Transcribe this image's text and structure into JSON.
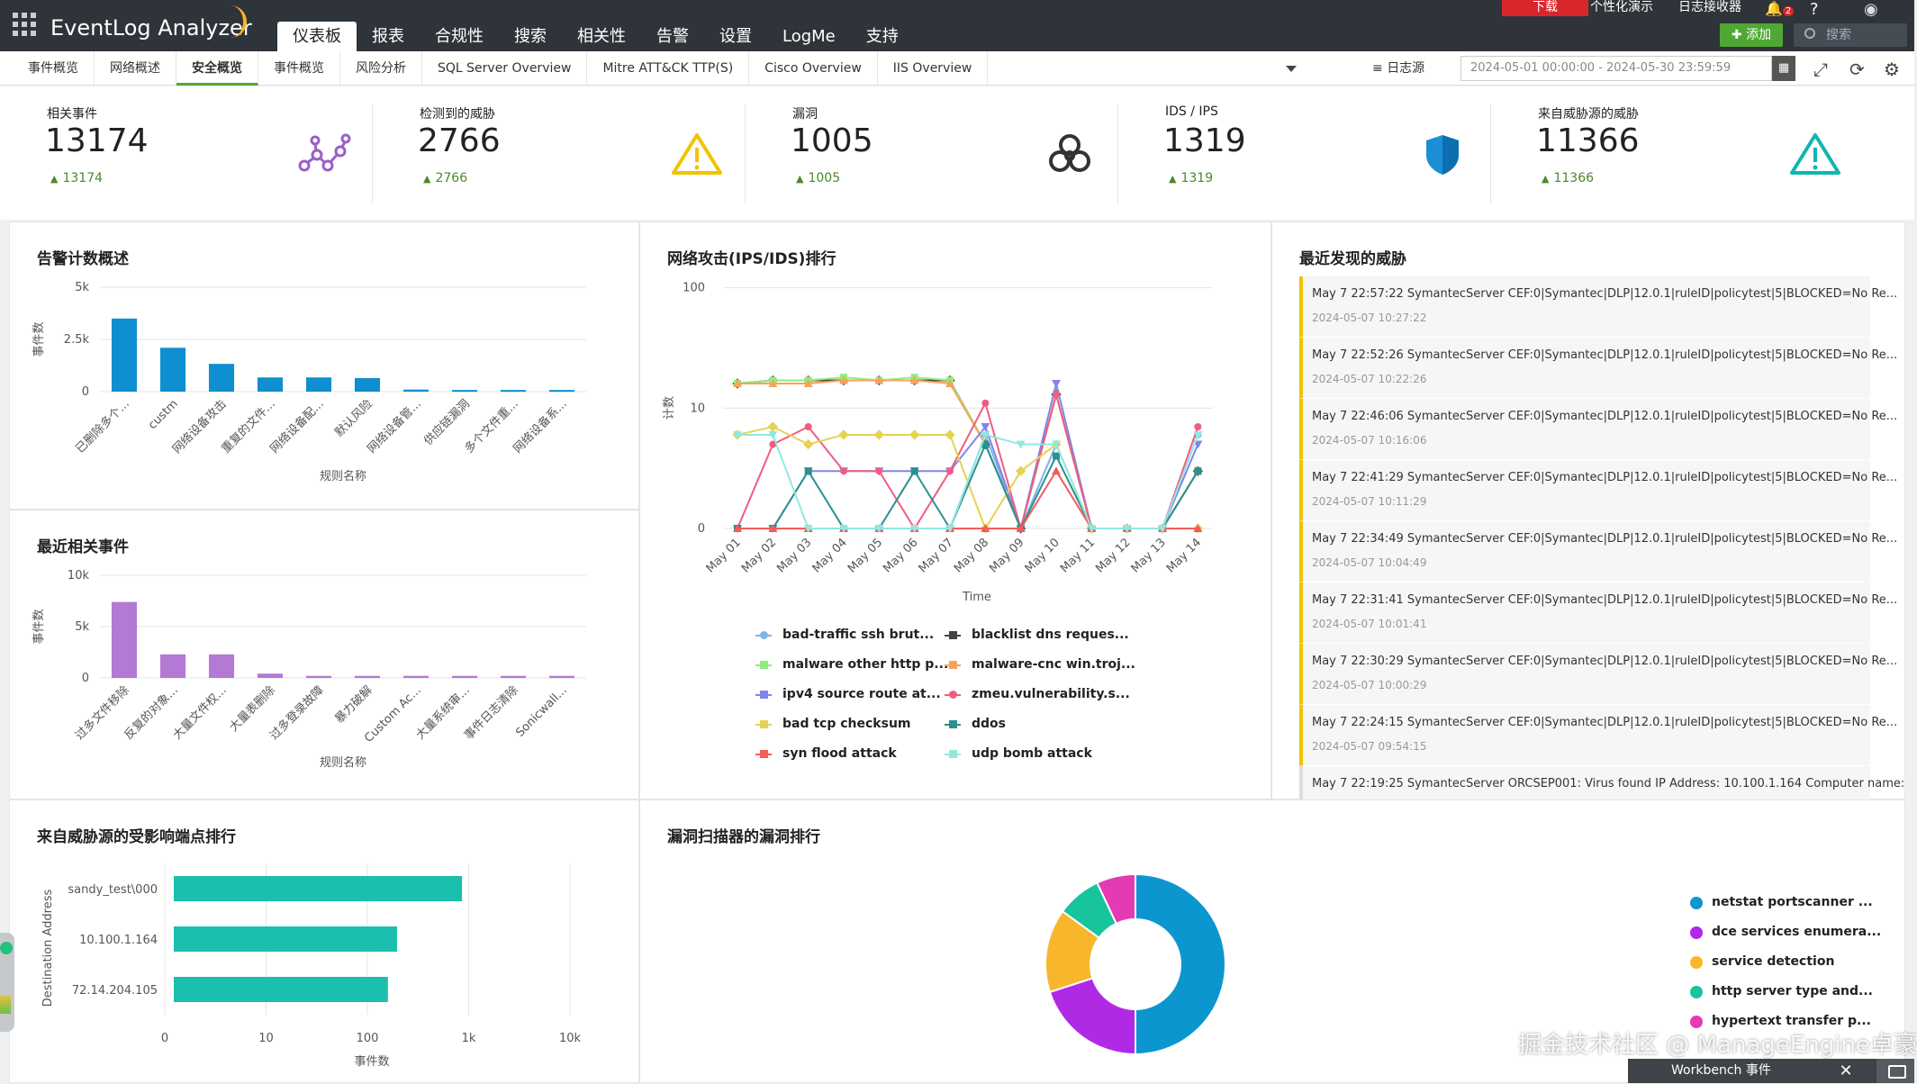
{
  "app": {
    "name": "EventLog Analyzer",
    "main_nav": [
      "仪表板",
      "报表",
      "合规性",
      "搜索",
      "相关性",
      "告警",
      "设置",
      "LogMe",
      "支持"
    ],
    "top_links": {
      "download": "下载",
      "personalize": "个性化演示",
      "log_receiver": "日志接收器",
      "help": "?",
      "bell_count": "2"
    },
    "add_label": "添加",
    "search_placeholder": "搜索"
  },
  "subnav": {
    "tabs": [
      "事件概览",
      "网络概述",
      "安全概览",
      "事件概览",
      "风险分析",
      "SQL Server Overview",
      "Mitre ATT&CK TTP(S)",
      "Cisco Overview",
      "IIS Overview"
    ],
    "active_index": 2,
    "log_source": "日志源",
    "date_range": "2024-05-01 00:00:00 - 2024-05-30 23:59:59"
  },
  "kpis": [
    {
      "label": "相关事件",
      "value": "13174",
      "delta": "13174",
      "icon": "correlation-icon",
      "color": "#9b5fc7"
    },
    {
      "label": "检测到的威胁",
      "value": "2766",
      "delta": "2766",
      "icon": "warning-icon",
      "color": "#f2c300"
    },
    {
      "label": "漏洞",
      "value": "1005",
      "delta": "1005",
      "icon": "biohazard-icon",
      "color": "#333333"
    },
    {
      "label": "IDS / IPS",
      "value": "1319",
      "delta": "1319",
      "icon": "shield-icon",
      "color": "#1a8fd6"
    },
    {
      "label": "来自威胁源的威胁",
      "value": "11366",
      "delta": "11366",
      "icon": "alert-triangle-icon",
      "color": "#12b5b0"
    }
  ],
  "panels": {
    "alert_count": "告警计数概述",
    "network_attack": "网络攻击(IPS/IDS)排行",
    "recent_threats": "最近发现的威胁",
    "recent_correlation": "最近相关事件",
    "threat_endpoints": "来自威胁源的受影响端点排行",
    "vuln_scanner": "漏洞扫描器的漏洞排行"
  },
  "recent_threats": [
    {
      "text": "May 7 22:57:22 SymantecServer CEF:0|Symantec|DLP|12.0.1|ruleID|policytest|5|BLOCKED=No Re...",
      "time": "2024-05-07 10:27:22"
    },
    {
      "text": "May 7 22:52:26 SymantecServer CEF:0|Symantec|DLP|12.0.1|ruleID|policytest|5|BLOCKED=No Re...",
      "time": "2024-05-07 10:22:26"
    },
    {
      "text": "May 7 22:46:06 SymantecServer CEF:0|Symantec|DLP|12.0.1|ruleID|policytest|5|BLOCKED=No Re...",
      "time": "2024-05-07 10:16:06"
    },
    {
      "text": "May 7 22:41:29 SymantecServer CEF:0|Symantec|DLP|12.0.1|ruleID|policytest|5|BLOCKED=No Re...",
      "time": "2024-05-07 10:11:29"
    },
    {
      "text": "May 7 22:34:49 SymantecServer CEF:0|Symantec|DLP|12.0.1|ruleID|policytest|5|BLOCKED=No Re...",
      "time": "2024-05-07 10:04:49"
    },
    {
      "text": "May 7 22:31:41 SymantecServer CEF:0|Symantec|DLP|12.0.1|ruleID|policytest|5|BLOCKED=No Re...",
      "time": "2024-05-07 10:01:41"
    },
    {
      "text": "May 7 22:30:29 SymantecServer CEF:0|Symantec|DLP|12.0.1|ruleID|policytest|5|BLOCKED=No Re...",
      "time": "2024-05-07 10:00:29"
    },
    {
      "text": "May 7 22:24:15 SymantecServer CEF:0|Symantec|DLP|12.0.1|ruleID|policytest|5|BLOCKED=No Re...",
      "time": "2024-05-07 09:54:15"
    },
    {
      "text": "May 7 22:19:25 SymantecServer ORCSEP001: Virus found IP Address: 10.100.1.164 Computer name:",
      "time": ""
    }
  ],
  "chart_data": [
    {
      "id": "alert-count",
      "type": "bar",
      "xlabel": "规则名称",
      "ylabel": "事件数",
      "yticks": [
        "0",
        "2.5k",
        "5k"
      ],
      "ylim": [
        0,
        5000
      ],
      "categories": [
        "已删除多个...",
        "custm",
        "网络设备攻击",
        "重复的文件...",
        "网络设备配...",
        "默认风险",
        "网络设备管...",
        "供应链漏洞",
        "多个文件重...",
        "网络设备系..."
      ],
      "values": [
        3500,
        2100,
        1330,
        680,
        680,
        650,
        100,
        80,
        80,
        80
      ],
      "color": "#0f8fcf"
    },
    {
      "id": "recent-correlation",
      "type": "bar",
      "xlabel": "规则名称",
      "ylabel": "事件数",
      "yticks": [
        "0",
        "5k",
        "10k"
      ],
      "ylim": [
        0,
        10000
      ],
      "categories": [
        "过多文件移除",
        "反复的对象...",
        "大量文件权...",
        "大量表删除",
        "过多登录故障",
        "暴力破解",
        "Custom Ac...",
        "大量系统审...",
        "事件日志清除",
        "Sonicwall..."
      ],
      "values": [
        7400,
        2300,
        2300,
        420,
        200,
        200,
        200,
        200,
        200,
        200
      ],
      "color": "#b479d4"
    },
    {
      "id": "network-attack",
      "type": "line",
      "xlabel": "Time",
      "ylabel": "计数",
      "y_scale": "log",
      "yticks": [
        "0",
        "10",
        "100"
      ],
      "x": [
        "May 01",
        "May 02",
        "May 03",
        "May 04",
        "May 05",
        "May 06",
        "May 07",
        "May 08",
        "May 09",
        "May 10",
        "May 11",
        "May 12",
        "May 13",
        "May 14"
      ],
      "series": [
        {
          "name": "bad-traffic ssh brut...",
          "color": "#7cb5ec",
          "marker": "circle",
          "values": [
            0,
            0,
            0,
            0,
            0,
            0,
            0,
            5,
            0,
            4,
            0,
            0,
            0,
            5
          ]
        },
        {
          "name": "blacklist dns reques...",
          "color": "#434348",
          "marker": "diamond",
          "values": [
            15,
            16,
            16,
            16,
            16,
            16,
            16,
            4,
            0,
            12,
            0,
            0,
            0,
            2
          ]
        },
        {
          "name": "malware other http p...",
          "color": "#90ed7d",
          "marker": "square",
          "values": [
            15,
            16,
            16,
            17,
            16,
            17,
            16,
            4,
            0,
            12,
            0,
            0,
            0,
            2
          ]
        },
        {
          "name": "malware-cnc win.troj...",
          "color": "#f7a35c",
          "marker": "triangle",
          "values": [
            15,
            15,
            15,
            16,
            16,
            16,
            15,
            4,
            0,
            12,
            0,
            0,
            0,
            2
          ]
        },
        {
          "name": "ipv4 source route at...",
          "color": "#8085e9",
          "marker": "triangle-down",
          "values": [
            0,
            0,
            2,
            2,
            2,
            2,
            2,
            6,
            0,
            15,
            0,
            0,
            0,
            4
          ]
        },
        {
          "name": "zmeu.vulnerability.s...",
          "color": "#f15c80",
          "marker": "circle",
          "values": [
            0,
            4,
            6,
            2,
            2,
            0,
            2,
            10,
            0,
            12,
            0,
            0,
            0,
            6
          ]
        },
        {
          "name": "bad tcp checksum",
          "color": "#e4d354",
          "marker": "diamond",
          "values": [
            5,
            6,
            4,
            5,
            5,
            5,
            5,
            0,
            2,
            4,
            0,
            0,
            0,
            0
          ]
        },
        {
          "name": "ddos",
          "color": "#2b908f",
          "marker": "square",
          "values": [
            0,
            0,
            2,
            0,
            0,
            2,
            0,
            4,
            0,
            3,
            0,
            0,
            0,
            2
          ]
        },
        {
          "name": "syn flood attack",
          "color": "#f45b5b",
          "marker": "triangle",
          "values": [
            0,
            0,
            0,
            0,
            0,
            0,
            0,
            0,
            0,
            2,
            0,
            0,
            0,
            0
          ]
        },
        {
          "name": "udp bomb attack",
          "color": "#91e8e1",
          "marker": "triangle-down",
          "values": [
            5,
            5,
            0,
            0,
            0,
            0,
            0,
            5,
            4,
            4,
            0,
            0,
            0,
            5
          ]
        }
      ]
    },
    {
      "id": "threat-endpoints",
      "type": "bar",
      "orientation": "horizontal",
      "x_scale": "log",
      "xlabel": "事件数",
      "ylabel": "Destination Address",
      "xticks": [
        "0",
        "10",
        "100",
        "1k",
        "10k"
      ],
      "categories": [
        "sandy_test\\000",
        "10.100.1.164",
        "72.14.204.105"
      ],
      "values": [
        700,
        160,
        130
      ],
      "color": "#1bbfad"
    },
    {
      "id": "vuln-scanner",
      "type": "pie",
      "donut": true,
      "labels": [
        "netstat portscanner ...",
        "dce services enumera...",
        "service detection",
        "http server type and...",
        "hypertext transfer p..."
      ],
      "values": [
        50,
        20,
        15,
        8,
        7
      ],
      "colors": [
        "#0b96d0",
        "#b02ae6",
        "#f8b62c",
        "#18c49b",
        "#e43bb4"
      ]
    }
  ],
  "footer": {
    "watermark": "掘金技术社区 @ ManageEngine卓豪",
    "workbench": "Workbench 事件"
  }
}
